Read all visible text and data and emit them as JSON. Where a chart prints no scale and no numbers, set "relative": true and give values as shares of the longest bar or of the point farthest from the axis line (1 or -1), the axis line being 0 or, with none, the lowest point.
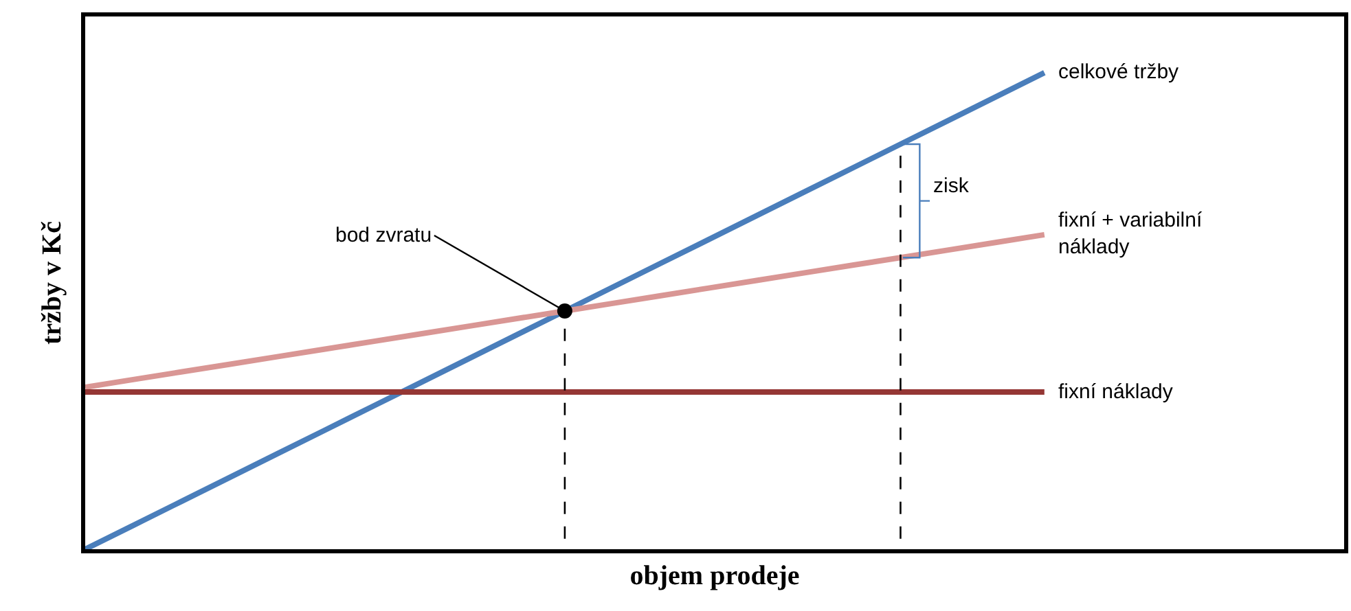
{
  "chart_data": {
    "type": "line",
    "relative": true,
    "xlabel": "objem prodeje",
    "ylabel": "tržby v Kč",
    "categories": [
      null,
      null,
      null,
      null,
      null,
      null,
      null,
      null,
      null,
      null,
      null,
      null,
      null,
      null,
      null,
      null,
      null,
      null,
      null,
      null,
      null
    ],
    "series": [
      {
        "name": "celkové tržby",
        "color": "#4a7ebb",
        "values": [
          0,
          0.05,
          0.1,
          0.15,
          0.2,
          0.25,
          0.3,
          0.35,
          0.4,
          0.45,
          0.5,
          0.55,
          0.6,
          0.65,
          0.7,
          0.75,
          0.8,
          0.85,
          0.9,
          0.95,
          1
        ]
      },
      {
        "name": "fixní + variabilní náklady",
        "color": "#d99694",
        "values": [
          0.34,
          0.356,
          0.372,
          0.388,
          0.404,
          0.42,
          0.436,
          0.452,
          0.468,
          0.484,
          0.5,
          0.516,
          0.532,
          0.548,
          0.564,
          0.58,
          0.596,
          0.612,
          0.628,
          0.644,
          0.66
        ]
      },
      {
        "name": "fixní náklady",
        "color": "#953735",
        "values": [
          0.33,
          0.33,
          0.33,
          0.33,
          0.33,
          0.33,
          0.33,
          0.33,
          0.33,
          0.33,
          0.33,
          0.33,
          0.33,
          0.33,
          0.33,
          0.33,
          0.33,
          0.33,
          0.33,
          0.33,
          0.33
        ]
      }
    ],
    "annotations": [
      "bod zvratu",
      "zisk"
    ],
    "legend": false
  }
}
